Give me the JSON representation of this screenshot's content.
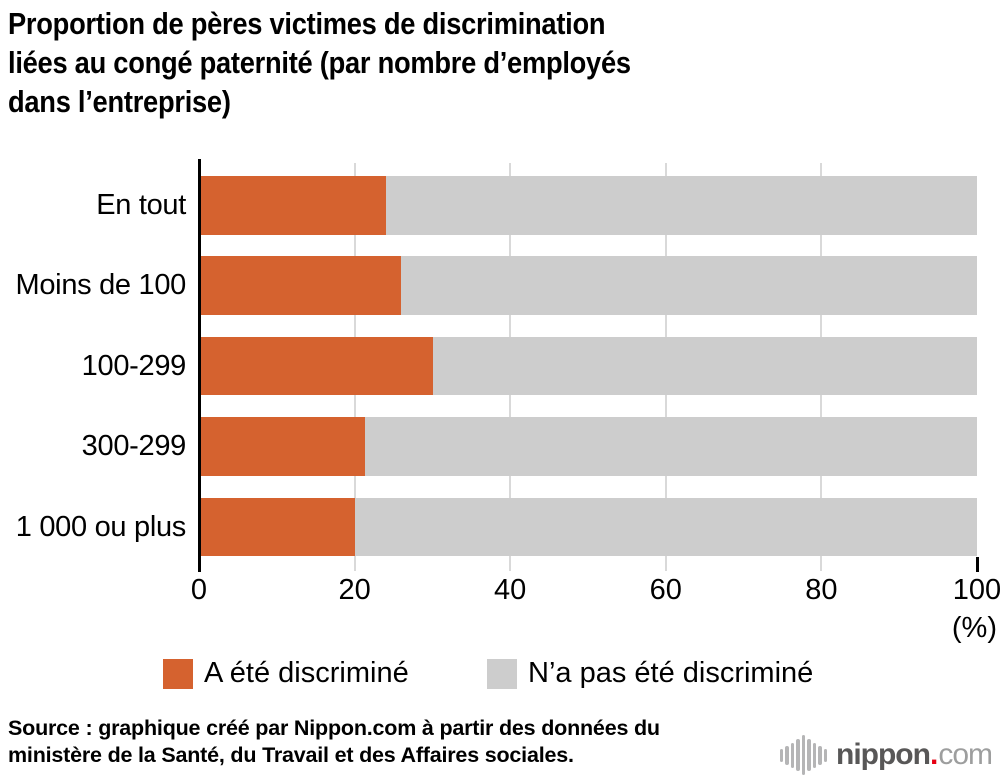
{
  "title_lines": [
    "Proportion de pères victimes de discrimination",
    "liées au congé paternité (par nombre d’employés",
    "dans l’entreprise)"
  ],
  "chart_data": {
    "type": "bar",
    "orientation": "horizontal",
    "stacked": true,
    "title": "Proportion de pères victimes de discrimination liées au congé paternité (par nombre d’employés dans l’entreprise)",
    "categories": [
      "En tout",
      "Moins de 100",
      "100-299",
      "300-299",
      "1 000 ou plus"
    ],
    "series": [
      {
        "name": "A été discriminé",
        "color": "#d5622f",
        "values": [
          24.1,
          26.0,
          30.1,
          21.4,
          20.0
        ]
      },
      {
        "name": "N’a pas été discriminé",
        "color": "#cdcdcd",
        "values": [
          75.9,
          74.0,
          69.9,
          78.6,
          80.0
        ]
      }
    ],
    "xlim": [
      0,
      100
    ],
    "x_ticks": [
      0,
      20,
      40,
      60,
      80,
      100
    ],
    "x_unit_label": "(%)",
    "grid": true,
    "legend_position": "bottom"
  },
  "colors": {
    "accent_orange": "#d5622f",
    "bar_gray": "#cdcdcd",
    "gridline": "#d9d9d9",
    "axis": "#000000",
    "logo_red_dot": "#e60012"
  },
  "source": {
    "line1": "Source : graphique créé par Nippon.com à partir des données du",
    "line2": "ministère de la Santé, du Travail et des Affaires sociales."
  },
  "logo": {
    "name": "nippon",
    "dot": ".",
    "suffix": "com"
  }
}
